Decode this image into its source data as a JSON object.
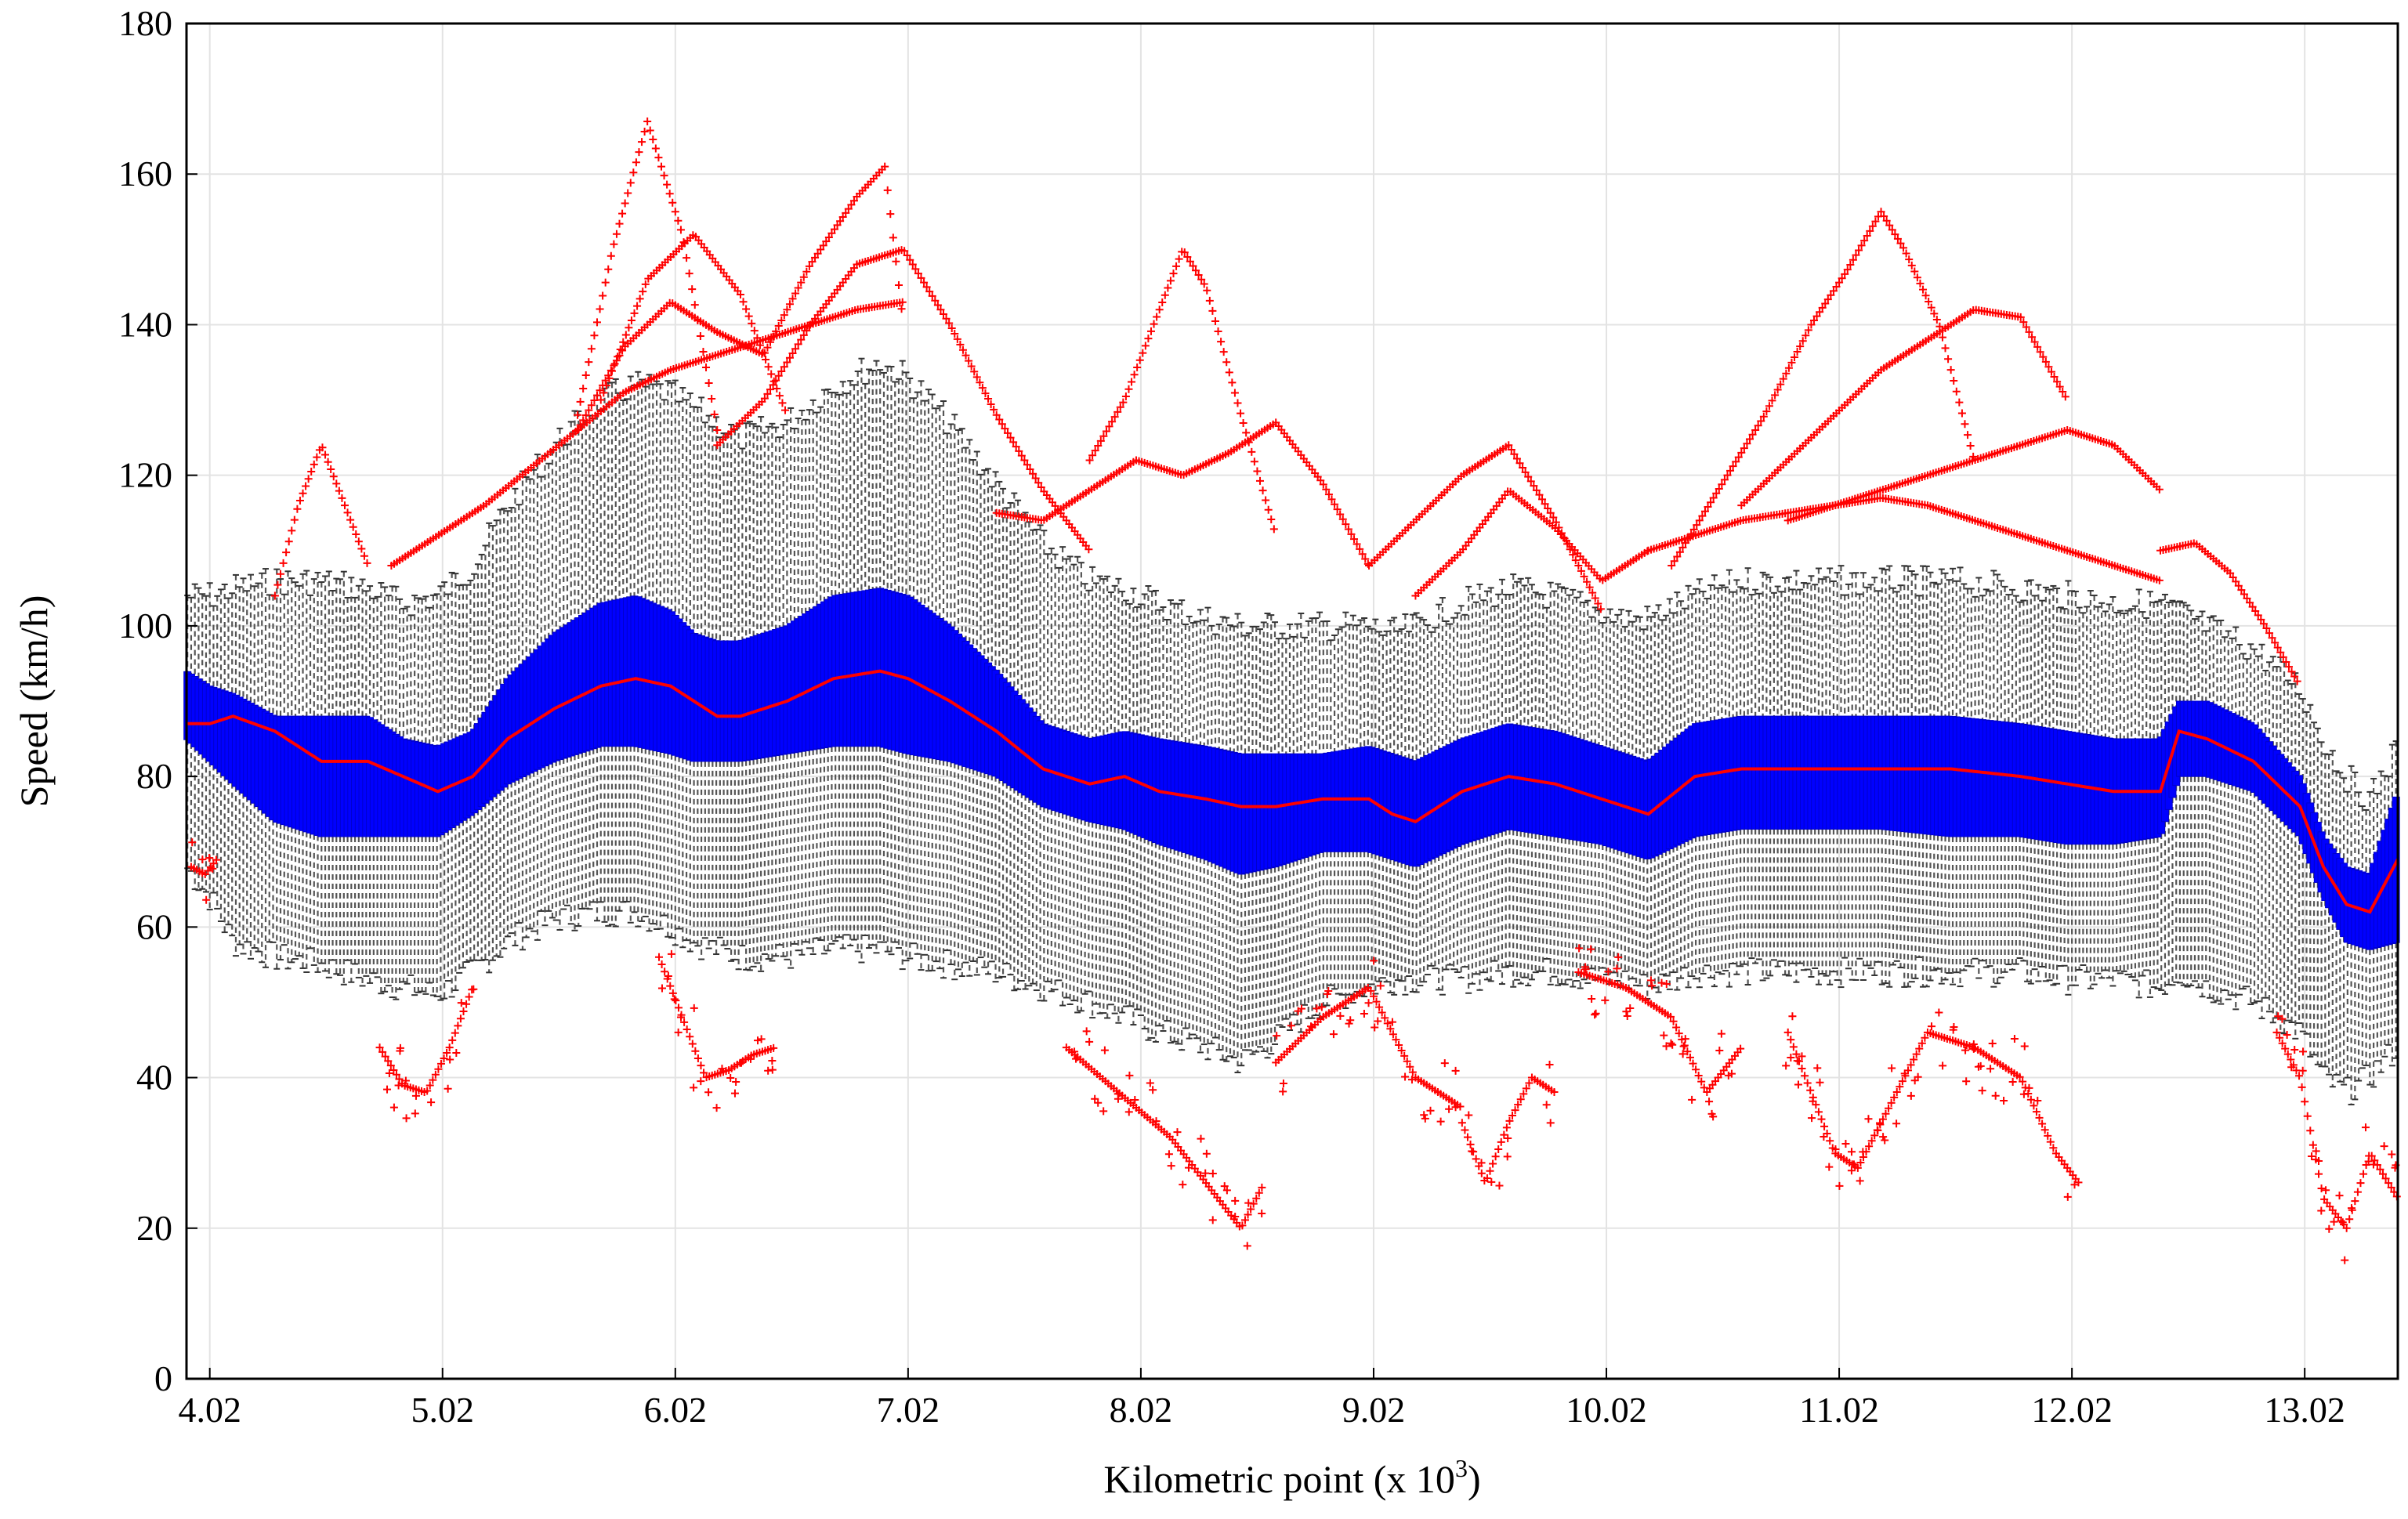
{
  "chart_data": {
    "type": "box-plot",
    "title": "",
    "xlabel": "Kilometric point (x 10",
    "xlabel_superscript": "3",
    "xlabel_suffix": ")",
    "ylabel": "Speed (km/h)",
    "xlim": [
      3.92,
      13.42
    ],
    "ylim": [
      0,
      180
    ],
    "grid": true,
    "x_ticks": [
      4.02,
      5.02,
      6.02,
      7.02,
      8.02,
      9.02,
      10.02,
      11.02,
      12.02,
      13.02
    ],
    "x_tick_labels": [
      "4.02",
      "5.02",
      "6.02",
      "7.02",
      "8.02",
      "9.02",
      "10.02",
      "11.02",
      "12.02",
      "13.02"
    ],
    "y_ticks": [
      0,
      20,
      40,
      60,
      80,
      100,
      120,
      140,
      160,
      180
    ],
    "y_tick_labels": [
      "0",
      "20",
      "40",
      "60",
      "80",
      "100",
      "120",
      "140",
      "160",
      "180"
    ],
    "colors": {
      "median": "#ff0000",
      "iqr_box": "#0000ff",
      "whisker": "#555555",
      "outlier": "#ff0000"
    },
    "profile_x": [
      3.92,
      4.02,
      4.12,
      4.3,
      4.5,
      4.7,
      4.85,
      5.0,
      5.15,
      5.3,
      5.5,
      5.7,
      5.85,
      6.0,
      6.1,
      6.2,
      6.3,
      6.5,
      6.7,
      6.9,
      7.02,
      7.2,
      7.4,
      7.6,
      7.8,
      7.95,
      8.1,
      8.3,
      8.45,
      8.6,
      8.8,
      9.0,
      9.1,
      9.2,
      9.4,
      9.6,
      9.8,
      10.0,
      10.1,
      10.2,
      10.4,
      10.6,
      10.8,
      11.0,
      11.2,
      11.5,
      11.8,
      12.0,
      12.2,
      12.4,
      12.48,
      12.6,
      12.8,
      13.0,
      13.1,
      13.2,
      13.3,
      13.42
    ],
    "median": [
      87,
      87,
      88,
      86,
      82,
      82,
      80,
      78,
      80,
      85,
      89,
      92,
      93,
      92,
      90,
      88,
      88,
      90,
      93,
      94,
      93,
      90,
      86,
      81,
      79,
      80,
      78,
      77,
      76,
      76,
      77,
      77,
      75,
      74,
      78,
      80,
      79,
      77,
      76,
      75,
      80,
      81,
      81,
      81,
      81,
      81,
      80,
      79,
      78,
      78,
      86,
      85,
      82,
      76,
      68,
      63,
      62,
      69
    ],
    "q1": [
      85,
      82,
      79,
      74,
      72,
      72,
      72,
      72,
      75,
      79,
      82,
      84,
      84,
      83,
      82,
      82,
      82,
      83,
      84,
      84,
      83,
      82,
      80,
      76,
      74,
      73,
      71,
      69,
      67,
      68,
      70,
      70,
      69,
      68,
      71,
      73,
      72,
      71,
      70,
      69,
      72,
      73,
      73,
      73,
      73,
      72,
      72,
      71,
      71,
      72,
      80,
      80,
      78,
      72,
      64,
      58,
      57,
      58
    ],
    "q3": [
      94,
      92,
      91,
      88,
      88,
      88,
      85,
      84,
      86,
      93,
      99,
      103,
      104,
      102,
      99,
      98,
      98,
      100,
      104,
      105,
      104,
      100,
      94,
      87,
      85,
      86,
      85,
      84,
      83,
      83,
      83,
      84,
      83,
      82,
      85,
      87,
      86,
      84,
      83,
      82,
      87,
      88,
      88,
      88,
      88,
      88,
      87,
      86,
      85,
      85,
      90,
      90,
      87,
      80,
      72,
      68,
      67,
      78
    ],
    "whisker_low": [
      68,
      64,
      58,
      56,
      55,
      53,
      52,
      51,
      54,
      58,
      61,
      62,
      62,
      60,
      58,
      57,
      56,
      56,
      57,
      57,
      56,
      55,
      54,
      52,
      50,
      48,
      46,
      44,
      42,
      45,
      50,
      52,
      53,
      53,
      53,
      54,
      54,
      53,
      53,
      52,
      54,
      54,
      54,
      54,
      54,
      54,
      54,
      53,
      53,
      52,
      54,
      52,
      50,
      46,
      40,
      38,
      40,
      44
    ],
    "whisker_high": [
      104,
      104,
      105,
      106,
      106,
      105,
      103,
      104,
      108,
      116,
      124,
      130,
      132,
      131,
      129,
      127,
      125,
      127,
      132,
      135,
      133,
      127,
      119,
      111,
      106,
      105,
      103,
      101,
      100,
      100,
      100,
      100,
      99,
      100,
      103,
      105,
      104,
      102,
      101,
      101,
      104,
      106,
      106,
      106,
      106,
      106,
      105,
      104,
      103,
      103,
      102,
      100,
      97,
      92,
      85,
      80,
      77,
      84
    ],
    "outlier_traces_high": [
      {
        "x": [
          4.3,
          4.4,
          4.5,
          4.6,
          4.7
        ],
        "y": [
          104,
          116,
          124,
          116,
          108
        ]
      },
      {
        "x": [
          4.8,
          5.0,
          5.2,
          5.4,
          5.6,
          5.8,
          6.0,
          6.2,
          6.4,
          6.6,
          6.8,
          7.0
        ],
        "y": [
          108,
          112,
          116,
          121,
          126,
          131,
          134,
          136,
          138,
          140,
          142,
          143
        ]
      },
      {
        "x": [
          5.6,
          5.75,
          5.9,
          6.05,
          6.2
        ],
        "y": [
          128,
          150,
          167,
          152,
          126
        ]
      },
      {
        "x": [
          5.7,
          5.9,
          6.1,
          6.3,
          6.5
        ],
        "y": [
          130,
          146,
          152,
          144,
          128
        ]
      },
      {
        "x": [
          5.6,
          5.8,
          6.0,
          6.2,
          6.4,
          6.6,
          6.8,
          6.92,
          7.0
        ],
        "y": [
          126,
          137,
          143,
          139,
          136,
          148,
          157,
          161,
          140
        ]
      },
      {
        "x": [
          6.2,
          6.4,
          6.6,
          6.8,
          7.0,
          7.2,
          7.4,
          7.6,
          7.8
        ],
        "y": [
          124,
          130,
          140,
          148,
          150,
          140,
          128,
          118,
          110
        ]
      },
      {
        "x": [
          7.8,
          7.95,
          8.1,
          8.2,
          8.3,
          8.45,
          8.6
        ],
        "y": [
          122,
          130,
          142,
          150,
          145,
          128,
          112
        ]
      },
      {
        "x": [
          7.4,
          7.6,
          7.8,
          8.0,
          8.2,
          8.4,
          8.6,
          8.8,
          9.0
        ],
        "y": [
          115,
          114,
          118,
          122,
          120,
          123,
          127,
          119,
          108
        ]
      },
      {
        "x": [
          9.0,
          9.2,
          9.4,
          9.6,
          9.8,
          10.0
        ],
        "y": [
          108,
          114,
          120,
          124,
          114,
          102
        ]
      },
      {
        "x": [
          9.2,
          9.4,
          9.6,
          9.8,
          10.0,
          10.2
        ],
        "y": [
          104,
          110,
          118,
          113,
          106,
          110
        ]
      },
      {
        "x": [
          10.3,
          10.5,
          10.7,
          10.9,
          11.05,
          11.2,
          11.3,
          11.45,
          11.6
        ],
        "y": [
          108,
          118,
          128,
          140,
          147,
          155,
          150,
          140,
          122
        ]
      },
      {
        "x": [
          10.6,
          10.8,
          11.0,
          11.2,
          11.4,
          11.6,
          11.8,
          12.0
        ],
        "y": [
          116,
          122,
          128,
          134,
          138,
          142,
          141,
          130
        ]
      },
      {
        "x": [
          10.8,
          11.0,
          11.2,
          11.4,
          11.6,
          11.8,
          12.0,
          12.2,
          12.4
        ],
        "y": [
          114,
          116,
          118,
          120,
          122,
          124,
          126,
          124,
          118
        ]
      },
      {
        "x": [
          10.2,
          10.4,
          10.6,
          10.8,
          11.0,
          11.2,
          11.4,
          11.6,
          11.8,
          12.0,
          12.2,
          12.4
        ],
        "y": [
          110,
          112,
          114,
          115,
          116,
          117,
          116,
          114,
          112,
          110,
          108,
          106
        ]
      },
      {
        "x": [
          12.4,
          12.55,
          12.7,
          12.85,
          13.0
        ],
        "y": [
          110,
          111,
          107,
          100,
          92
        ]
      }
    ],
    "outlier_traces_low": [
      {
        "x": [
          3.94,
          4.0,
          4.05
        ],
        "y": [
          68,
          67,
          69
        ]
      },
      {
        "x": [
          4.75,
          4.85,
          4.95,
          5.05,
          5.15
        ],
        "y": [
          44,
          39,
          38,
          44,
          52
        ]
      },
      {
        "x": [
          5.95,
          6.05,
          6.15,
          6.25,
          6.35,
          6.45
        ],
        "y": [
          56,
          48,
          40,
          41,
          43,
          44
        ]
      },
      {
        "x": [
          7.7,
          7.85,
          8.0,
          8.15,
          8.3,
          8.45,
          8.55
        ],
        "y": [
          44,
          40,
          36,
          32,
          26,
          20,
          26
        ]
      },
      {
        "x": [
          8.6,
          8.8,
          9.0,
          9.1,
          9.2,
          9.4
        ],
        "y": [
          42,
          48,
          52,
          46,
          40,
          36
        ]
      },
      {
        "x": [
          9.4,
          9.5,
          9.6,
          9.7,
          9.8
        ],
        "y": [
          34,
          26,
          34,
          40,
          38
        ]
      },
      {
        "x": [
          9.9,
          10.1,
          10.3,
          10.45,
          10.6
        ],
        "y": [
          54,
          52,
          48,
          38,
          44
        ]
      },
      {
        "x": [
          10.8,
          11.0,
          11.1,
          11.2,
          11.4
        ],
        "y": [
          46,
          30,
          28,
          34,
          46
        ]
      },
      {
        "x": [
          11.4,
          11.6,
          11.8,
          11.95,
          12.05
        ],
        "y": [
          46,
          44,
          40,
          30,
          26
        ]
      },
      {
        "x": [
          12.9,
          13.0,
          13.1,
          13.2,
          13.3,
          13.42
        ],
        "y": [
          46,
          40,
          24,
          20,
          30,
          24
        ]
      }
    ]
  }
}
